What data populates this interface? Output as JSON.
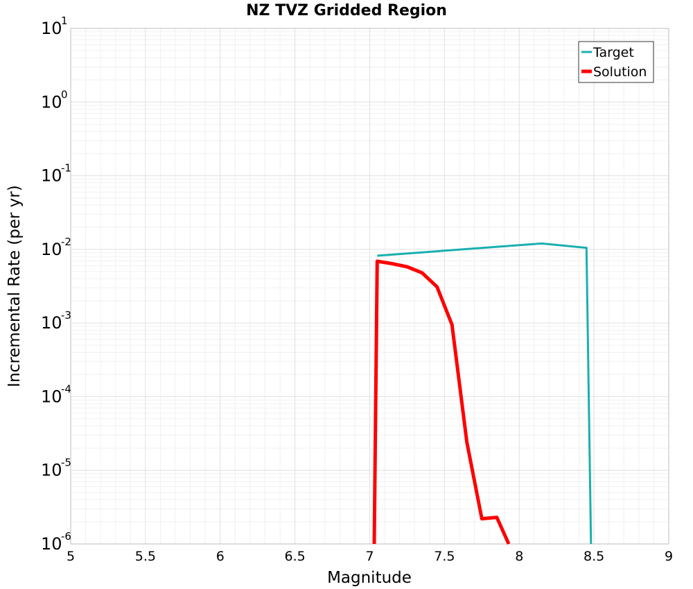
{
  "chart_data": {
    "type": "line",
    "title": "NZ TVZ Gridded Region",
    "xlabel": "Magnitude",
    "ylabel": "Incremental Rate (per yr)",
    "xlim": [
      5,
      9
    ],
    "ylim": [
      1e-06,
      10
    ],
    "yscale": "log",
    "grid": true,
    "legend_position": "top-right",
    "x_ticks": [
      "5",
      "5.5",
      "6",
      "6.5",
      "7",
      "7.5",
      "8",
      "8.5",
      "9"
    ],
    "y_ticks": [
      {
        "base": "10",
        "exp": "-6"
      },
      {
        "base": "10",
        "exp": "-5"
      },
      {
        "base": "10",
        "exp": "-4"
      },
      {
        "base": "10",
        "exp": "-3"
      },
      {
        "base": "10",
        "exp": "-2"
      },
      {
        "base": "10",
        "exp": "-1"
      },
      {
        "base": "10",
        "exp": "0"
      },
      {
        "base": "10",
        "exp": "1"
      }
    ],
    "series": [
      {
        "name": "Target",
        "color": "#1aafaf",
        "x": [
          7.05,
          8.15,
          8.45,
          8.48
        ],
        "y": [
          0.0082,
          0.012,
          0.0105,
          1e-06
        ]
      },
      {
        "name": "Solution",
        "color": "#ff0000",
        "x": [
          7.03,
          7.05,
          7.15,
          7.25,
          7.35,
          7.45,
          7.55,
          7.65,
          7.75,
          7.85,
          7.93
        ],
        "y": [
          1e-06,
          0.0069,
          0.0064,
          0.0058,
          0.0048,
          0.0031,
          0.00095,
          2.4e-05,
          2.2e-06,
          2.3e-06,
          1e-06
        ]
      }
    ]
  }
}
